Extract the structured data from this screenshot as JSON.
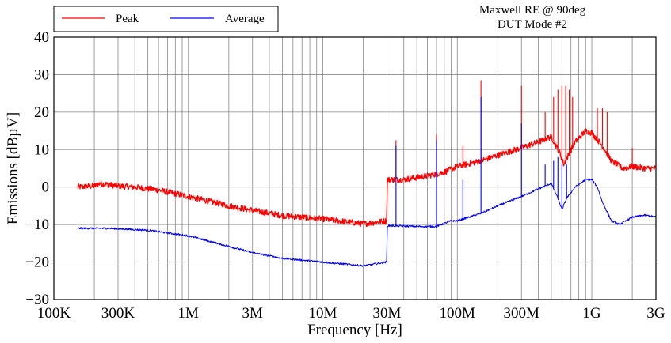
{
  "chart_data": {
    "type": "line",
    "title": [
      "Maxwell RE @ 90deg",
      "DUT Mode #2"
    ],
    "xlabel": "Frequency [Hz]",
    "ylabel": "Emissions [dBµV]",
    "xscale": "log",
    "xlim": [
      100000,
      3000000000
    ],
    "ylim": [
      -30,
      40
    ],
    "grid": true,
    "legend_position": "top-left",
    "xticks": [
      {
        "value": 100000,
        "label": "100K"
      },
      {
        "value": 300000,
        "label": "300K"
      },
      {
        "value": 1000000,
        "label": "1M"
      },
      {
        "value": 3000000,
        "label": "3M"
      },
      {
        "value": 10000000,
        "label": "10M"
      },
      {
        "value": 30000000,
        "label": "30M"
      },
      {
        "value": 100000000,
        "label": "100M"
      },
      {
        "value": 300000000,
        "label": "300M"
      },
      {
        "value": 1000000000,
        "label": "1G"
      },
      {
        "value": 3000000000,
        "label": "3G"
      }
    ],
    "yticks": [
      {
        "value": 40,
        "label": "40"
      },
      {
        "value": 30,
        "label": "30"
      },
      {
        "value": 20,
        "label": "20"
      },
      {
        "value": 10,
        "label": "10"
      },
      {
        "value": 0,
        "label": "0"
      },
      {
        "value": -10,
        "label": "−10"
      },
      {
        "value": -20,
        "label": "−20"
      },
      {
        "value": -30,
        "label": "−30"
      }
    ],
    "series": [
      {
        "name": "Peak",
        "color": "#ff0000",
        "noise": 0.8,
        "points": [
          [
            150000,
            0.0
          ],
          [
            200000,
            0.3
          ],
          [
            220000,
            1.0
          ],
          [
            300000,
            0.3
          ],
          [
            400000,
            0.0
          ],
          [
            600000,
            -0.8
          ],
          [
            1000000,
            -2.5
          ],
          [
            2000000,
            -5.0
          ],
          [
            3000000,
            -6.2
          ],
          [
            5000000,
            -7.6
          ],
          [
            10000000,
            -8.5
          ],
          [
            20000000,
            -9.8
          ],
          [
            29900000,
            -9.0
          ],
          [
            30100000,
            2.0
          ],
          [
            40000000,
            2.0
          ],
          [
            60000000,
            3.0
          ],
          [
            80000000,
            4.0
          ],
          [
            100000000,
            5.5
          ],
          [
            150000000,
            7.0
          ],
          [
            200000000,
            8.5
          ],
          [
            300000000,
            10.5
          ],
          [
            400000000,
            12.0
          ],
          [
            500000000,
            13.5
          ],
          [
            580000000,
            9.0
          ],
          [
            620000000,
            6.0
          ],
          [
            680000000,
            9.0
          ],
          [
            750000000,
            12.0
          ],
          [
            900000000,
            15.0
          ],
          [
            1000000000,
            14.5
          ],
          [
            1200000000,
            11.0
          ],
          [
            1400000000,
            7.0
          ],
          [
            1700000000,
            5.0
          ],
          [
            2000000000,
            5.5
          ],
          [
            2500000000,
            5.0
          ],
          [
            3000000000,
            5.0
          ]
        ],
        "spikes": [
          [
            35000000,
            12.5
          ],
          [
            70000000,
            14.0
          ],
          [
            110000000,
            11.0
          ],
          [
            150000000,
            28.5
          ],
          [
            300000000,
            27.0
          ],
          [
            450000000,
            20.0
          ],
          [
            520000000,
            24.0
          ],
          [
            560000000,
            26.0
          ],
          [
            600000000,
            27.0
          ],
          [
            640000000,
            27.0
          ],
          [
            680000000,
            26.0
          ],
          [
            720000000,
            24.0
          ],
          [
            1100000000,
            21.0
          ],
          [
            1200000000,
            21.0
          ],
          [
            1300000000,
            20.0
          ],
          [
            2000000000,
            10.5
          ]
        ]
      },
      {
        "name": "Average",
        "color": "#0000ff",
        "noise": 0.25,
        "points": [
          [
            150000,
            -11.0
          ],
          [
            250000,
            -11.0
          ],
          [
            500000,
            -11.5
          ],
          [
            1000000,
            -13.0
          ],
          [
            2000000,
            -15.8
          ],
          [
            3000000,
            -17.5
          ],
          [
            5000000,
            -19.0
          ],
          [
            10000000,
            -20.0
          ],
          [
            20000000,
            -21.0
          ],
          [
            29900000,
            -20.0
          ],
          [
            30100000,
            -10.3
          ],
          [
            50000000,
            -10.5
          ],
          [
            70000000,
            -10.5
          ],
          [
            90000000,
            -9.0
          ],
          [
            100000000,
            -9.0
          ],
          [
            150000000,
            -7.0
          ],
          [
            200000000,
            -5.0
          ],
          [
            300000000,
            -2.5
          ],
          [
            400000000,
            -0.5
          ],
          [
            500000000,
            1.0
          ],
          [
            560000000,
            -3.0
          ],
          [
            600000000,
            -6.0
          ],
          [
            650000000,
            -3.0
          ],
          [
            750000000,
            0.0
          ],
          [
            900000000,
            2.0
          ],
          [
            1000000000,
            2.0
          ],
          [
            1100000000,
            0.0
          ],
          [
            1200000000,
            -4.0
          ],
          [
            1400000000,
            -9.0
          ],
          [
            1600000000,
            -10.0
          ],
          [
            1800000000,
            -9.0
          ],
          [
            2000000000,
            -8.0
          ],
          [
            2500000000,
            -7.5
          ],
          [
            3000000000,
            -8.0
          ]
        ],
        "spikes": [
          [
            35000000,
            11.0
          ],
          [
            70000000,
            12.5
          ],
          [
            110000000,
            2.0
          ],
          [
            150000000,
            24.0
          ],
          [
            300000000,
            17.0
          ],
          [
            450000000,
            6.0
          ],
          [
            520000000,
            7.0
          ],
          [
            560000000,
            8.0
          ],
          [
            600000000,
            6.0
          ],
          [
            650000000,
            6.0
          ]
        ]
      }
    ]
  }
}
